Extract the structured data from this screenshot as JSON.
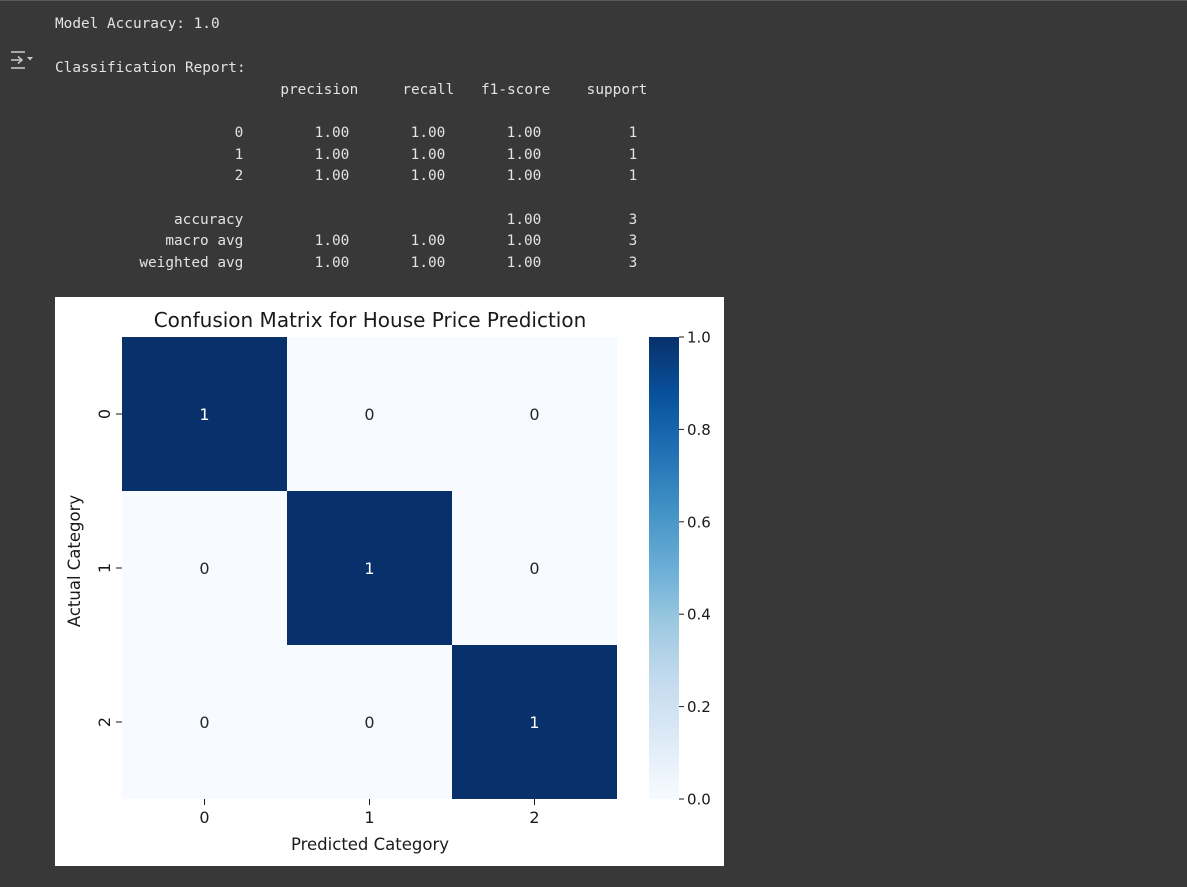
{
  "output": {
    "accuracy_line": "Model Accuracy: 1.0",
    "report_title": "Classification Report:",
    "report_headers": [
      "precision",
      "recall",
      "f1-score",
      "support"
    ],
    "report_rows": [
      {
        "label": "0",
        "precision": "1.00",
        "recall": "1.00",
        "f1": "1.00",
        "support": "1"
      },
      {
        "label": "1",
        "precision": "1.00",
        "recall": "1.00",
        "f1": "1.00",
        "support": "1"
      },
      {
        "label": "2",
        "precision": "1.00",
        "recall": "1.00",
        "f1": "1.00",
        "support": "1"
      }
    ],
    "report_summary": [
      {
        "label": "accuracy",
        "precision": "",
        "recall": "",
        "f1": "1.00",
        "support": "3"
      },
      {
        "label": "macro avg",
        "precision": "1.00",
        "recall": "1.00",
        "f1": "1.00",
        "support": "3"
      },
      {
        "label": "weighted avg",
        "precision": "1.00",
        "recall": "1.00",
        "f1": "1.00",
        "support": "3"
      }
    ]
  },
  "icons": {
    "output_toggle": "output-toggle-icon"
  },
  "chart_data": {
    "type": "heatmap",
    "title": "Confusion Matrix for House Price Prediction",
    "xlabel": "Predicted Category",
    "ylabel": "Actual Category",
    "x_categories": [
      "0",
      "1",
      "2"
    ],
    "y_categories": [
      "0",
      "1",
      "2"
    ],
    "values": [
      [
        1,
        0,
        0
      ],
      [
        0,
        1,
        0
      ],
      [
        0,
        0,
        1
      ]
    ],
    "annotations": [
      [
        "1",
        "0",
        "0"
      ],
      [
        "0",
        "1",
        "0"
      ],
      [
        "0",
        "0",
        "1"
      ]
    ],
    "colorbar": {
      "range": [
        0.0,
        1.0
      ],
      "ticks": [
        "0.0",
        "0.2",
        "0.4",
        "0.6",
        "0.8",
        "1.0"
      ]
    },
    "colormap": "Blues",
    "colors": {
      "low": "#f7fbff",
      "high": "#08306b",
      "annot_on_dark": "#ffffff",
      "annot_on_light": "#262626"
    }
  }
}
